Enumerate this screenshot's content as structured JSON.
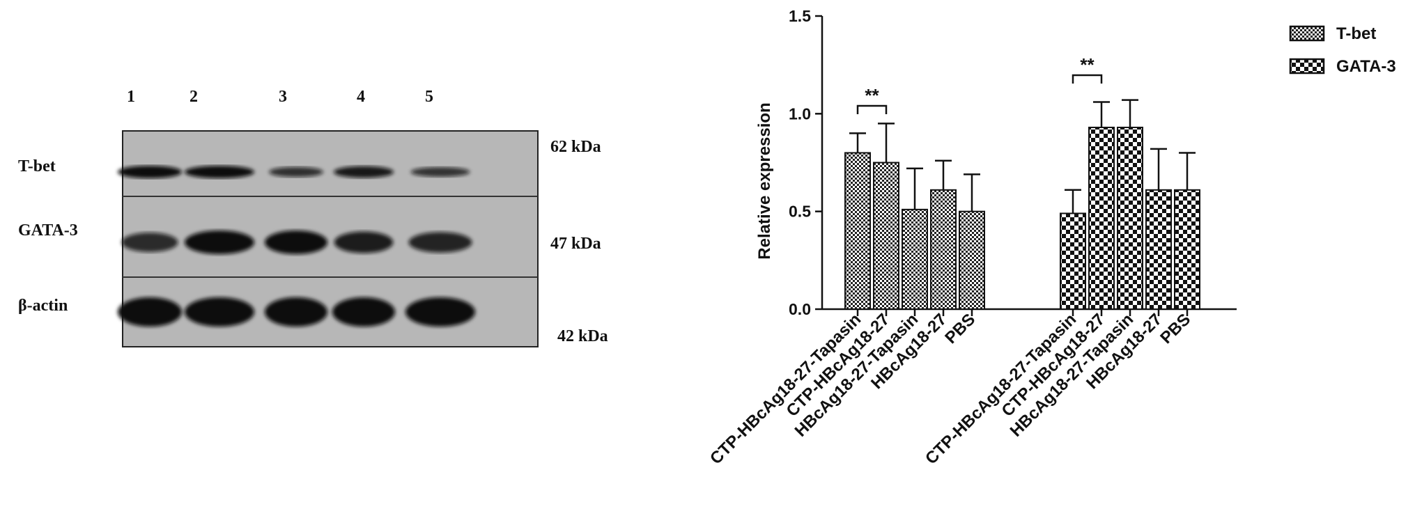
{
  "blot": {
    "lane_labels": [
      "1",
      "2",
      "3",
      "4",
      "5"
    ],
    "rows": [
      {
        "name": "T-bet",
        "kda": "62 kDa",
        "band_intensity": [
          1.0,
          1.0,
          0.55,
          0.85,
          0.5
        ]
      },
      {
        "name": "GATA-3",
        "kda": "47 kDa",
        "band_intensity": [
          0.6,
          1.0,
          1.0,
          0.8,
          0.7
        ]
      },
      {
        "name": "β-actin",
        "kda": "42 kDa",
        "band_intensity": [
          1.0,
          1.0,
          1.0,
          1.0,
          1.0
        ]
      }
    ]
  },
  "chart_data": {
    "type": "bar",
    "title": "",
    "xlabel": "",
    "ylabel": "Relative expression",
    "ylim": [
      0,
      1.5
    ],
    "yticks": [
      "0.0",
      "0.5",
      "1.0",
      "1.5"
    ],
    "legend_position": "top-right",
    "groups": [
      {
        "series": "T-bet",
        "categories": [
          "CTP-HBcAg18-27-Tapasin",
          "CTP-HBcAg18-27",
          "HBcAg18-27-Tapasin",
          "HBcAg18-27",
          "PBS"
        ],
        "values": [
          0.8,
          0.75,
          0.51,
          0.61,
          0.5
        ],
        "errors": [
          0.1,
          0.2,
          0.21,
          0.15,
          0.19
        ]
      },
      {
        "series": "GATA-3",
        "categories": [
          "CTP-HBcAg18-27-Tapasin",
          "CTP-HBcAg18-27",
          "HBcAg18-27-Tapasin",
          "HBcAg18-27",
          "PBS"
        ],
        "values": [
          0.49,
          0.93,
          0.93,
          0.61,
          0.61
        ],
        "errors": [
          0.12,
          0.13,
          0.14,
          0.21,
          0.19
        ]
      }
    ],
    "significance": [
      {
        "group": 0,
        "from": 0,
        "to": 1,
        "label": "**"
      },
      {
        "group": 1,
        "from": 0,
        "to": 1,
        "label": "**"
      }
    ],
    "legend": [
      "T-bet",
      "GATA-3"
    ]
  }
}
